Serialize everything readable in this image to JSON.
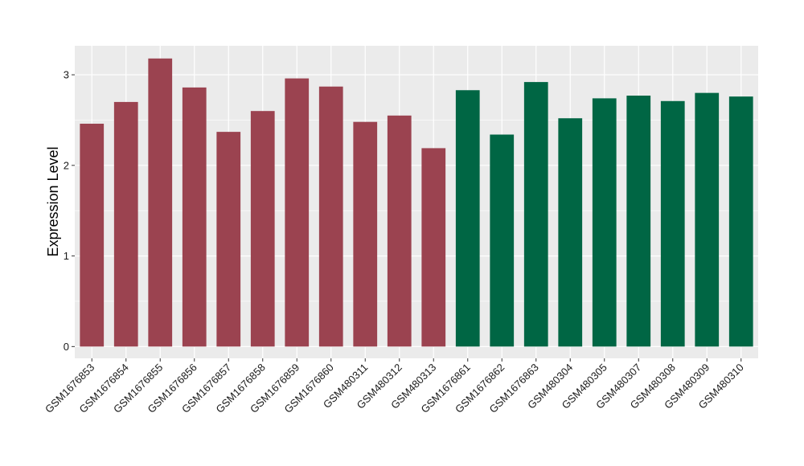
{
  "chart_data": {
    "type": "bar",
    "title": "",
    "xlabel": "",
    "ylabel": "Expression Level",
    "ylim": [
      -0.13,
      3.32
    ],
    "yticks": [
      0,
      1,
      2,
      3
    ],
    "grid": true,
    "legend": "none",
    "colors": {
      "panel": "#ebebeb",
      "grid": "#ffffff",
      "group_a": "#9b4350",
      "group_b": "#006644"
    },
    "categories": [
      "GSM1676853",
      "GSM1676854",
      "GSM1676855",
      "GSM1676856",
      "GSM1676857",
      "GSM1676858",
      "GSM1676859",
      "GSM1676860",
      "GSM480311",
      "GSM480312",
      "GSM480313",
      "GSM1676861",
      "GSM1676862",
      "GSM1676863",
      "GSM480304",
      "GSM480305",
      "GSM480307",
      "GSM480308",
      "GSM480309",
      "GSM480310"
    ],
    "values": [
      2.46,
      2.7,
      3.18,
      2.86,
      2.37,
      2.6,
      2.96,
      2.87,
      2.48,
      2.55,
      2.19,
      2.83,
      2.34,
      2.92,
      2.52,
      2.74,
      2.77,
      2.71,
      2.8,
      2.76
    ],
    "groups": [
      "group_a",
      "group_a",
      "group_a",
      "group_a",
      "group_a",
      "group_a",
      "group_a",
      "group_a",
      "group_a",
      "group_a",
      "group_a",
      "group_b",
      "group_b",
      "group_b",
      "group_b",
      "group_b",
      "group_b",
      "group_b",
      "group_b",
      "group_b"
    ]
  }
}
